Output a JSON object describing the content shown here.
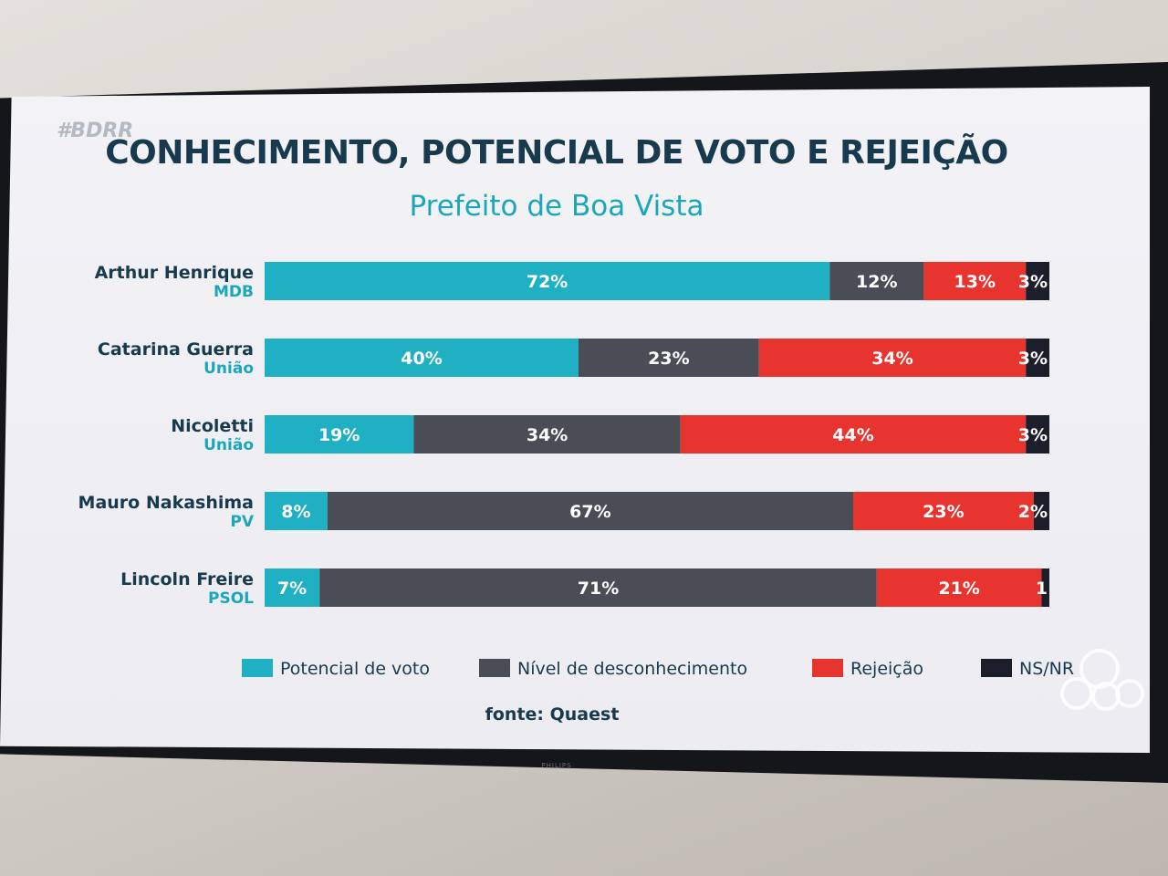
{
  "header": {
    "hashtag": "#BDRR",
    "title": "CONHECIMENTO, POTENCIAL DE VOTO E REJEIÇÃO",
    "subtitle": "Prefeito de Boa Vista"
  },
  "footer": {
    "source": "fonte: Quaest"
  },
  "tv": {
    "brand": "PHILIPS"
  },
  "colors": {
    "potencial": "#1fb0c4",
    "desconhecimento": "#4a4d56",
    "rejeicao": "#e8342f",
    "nsnr": "#1c1f2b"
  },
  "chart_data": {
    "type": "bar",
    "orientation": "horizontal",
    "stacked": true,
    "categories": [
      {
        "name": "Arthur Henrique",
        "party": "MDB"
      },
      {
        "name": "Catarina Guerra",
        "party": "União"
      },
      {
        "name": "Nicoletti",
        "party": "União"
      },
      {
        "name": "Mauro Nakashima",
        "party": "PV"
      },
      {
        "name": "Lincoln Freire",
        "party": "PSOL"
      }
    ],
    "series": [
      {
        "name": "Potencial de voto",
        "color": "#1fb0c4",
        "values": [
          72,
          40,
          19,
          8,
          7
        ],
        "labels": [
          "72%",
          "40%",
          "19%",
          "8%",
          "7%"
        ]
      },
      {
        "name": "Nível de desconhecimento",
        "color": "#4a4d56",
        "values": [
          12,
          23,
          34,
          67,
          71
        ],
        "labels": [
          "12%",
          "23%",
          "34%",
          "67%",
          "71%"
        ]
      },
      {
        "name": "Rejeição",
        "color": "#e8342f",
        "values": [
          13,
          34,
          44,
          23,
          21
        ],
        "labels": [
          "13%",
          "34%",
          "44%",
          "23%",
          "21%"
        ]
      },
      {
        "name": "NS/NR",
        "color": "#1c1f2b",
        "values": [
          3,
          3,
          3,
          2,
          1
        ],
        "labels": [
          "3%",
          "3%",
          "3%",
          "2%",
          "1"
        ]
      }
    ],
    "legend_position": "bottom",
    "grid": false
  }
}
